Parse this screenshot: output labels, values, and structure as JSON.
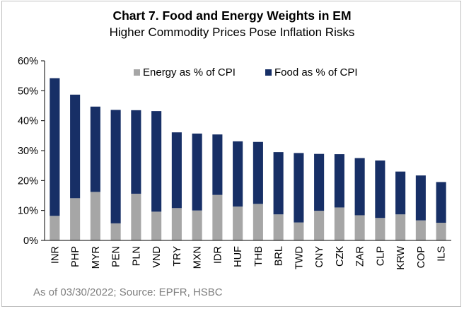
{
  "chart_data": {
    "type": "bar",
    "stacked": true,
    "title": "Chart 7. Food and Energy Weights in EM",
    "subtitle": "Higher Commodity Prices Pose Inflation Risks",
    "categories": [
      "INR",
      "PHP",
      "MYR",
      "PEN",
      "PLN",
      "VND",
      "TRY",
      "MXN",
      "IDR",
      "HUF",
      "THB",
      "BRL",
      "TWD",
      "CNY",
      "CZK",
      "ZAR",
      "CLP",
      "KRW",
      "COP",
      "ILS"
    ],
    "series": [
      {
        "name": "Energy as % of CPI",
        "color": "#a6a6a6",
        "values": [
          8.2,
          14.1,
          16.2,
          5.7,
          15.6,
          9.6,
          10.8,
          10.0,
          15.2,
          11.3,
          12.2,
          8.7,
          6.0,
          9.9,
          11.0,
          8.4,
          7.5,
          8.7,
          6.7,
          5.9
        ]
      },
      {
        "name": "Food as % of CPI",
        "color": "#172f66",
        "values": [
          46.0,
          34.6,
          28.5,
          37.9,
          27.9,
          33.6,
          25.3,
          25.7,
          20.2,
          21.8,
          20.7,
          20.8,
          23.2,
          19.0,
          17.8,
          19.1,
          19.2,
          14.3,
          15.0,
          13.6
        ]
      }
    ],
    "ylim": [
      0,
      60
    ],
    "yticks": [
      "0%",
      "10%",
      "20%",
      "30%",
      "40%",
      "50%",
      "60%"
    ],
    "xlabel": "",
    "ylabel": "",
    "legend_position": "top",
    "grid": false
  },
  "source_note": "As of 03/30/2022; Source: EPFR, HSBC"
}
